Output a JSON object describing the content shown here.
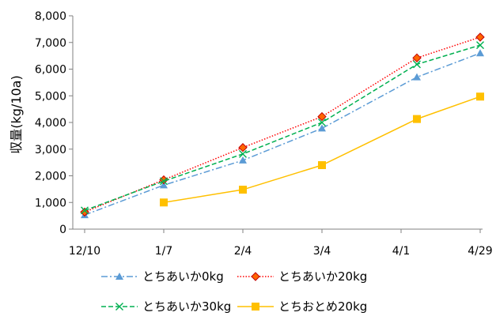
{
  "chart_data": {
    "type": "line",
    "title": "",
    "xlabel": "",
    "ylabel": "収量(kg/10a)",
    "ylim": [
      0,
      8000
    ],
    "yticks": [
      "0",
      "1,000",
      "2,000",
      "3,000",
      "4,000",
      "5,000",
      "6,000",
      "7,000",
      "8,000"
    ],
    "xticks": [
      "12/10",
      "1/7",
      "2/4",
      "3/4",
      "4/1",
      "4/29"
    ],
    "grid": false,
    "legend_position": "bottom",
    "series": [
      {
        "name": "とちあいか0kg",
        "color": "#5B9BD5",
        "marker": "triangle",
        "dash": "dashdot",
        "x": [
          0,
          1,
          2,
          3,
          4.2,
          5
        ],
        "values": [
          530,
          1650,
          2580,
          3780,
          5700,
          6600
        ]
      },
      {
        "name": "とちあいか20kg",
        "color": "#FF0000",
        "marker": "diamond",
        "dash": "dotted",
        "x": [
          0,
          1,
          2,
          3,
          4.2,
          5
        ],
        "values": [
          640,
          1850,
          3060,
          4220,
          6420,
          7200
        ]
      },
      {
        "name": "とちあいか30kg",
        "color": "#00B050",
        "marker": "x",
        "dash": "dashed",
        "x": [
          0,
          1,
          2,
          3,
          4.2,
          5
        ],
        "values": [
          700,
          1800,
          2820,
          4000,
          6180,
          6900
        ]
      },
      {
        "name": "とちおとめ20kg",
        "color": "#FFC000",
        "marker": "square",
        "dash": "solid",
        "x": [
          1,
          2,
          3,
          4.2,
          5
        ],
        "values": [
          1000,
          1480,
          2400,
          4130,
          4970
        ]
      }
    ]
  }
}
